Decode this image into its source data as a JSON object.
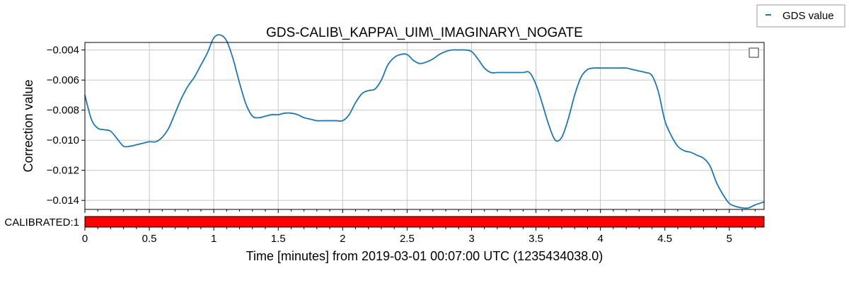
{
  "chart_data": {
    "type": "line",
    "title": "GDS-CALIB\\_KAPPA\\_UIM\\_IMAGINARY\\_NOGATE",
    "xlabel": "Time [minutes] from 2019-03-01 00:07:00 UTC (1235434038.0)",
    "ylabel": "Correction value",
    "xlim": [
      0,
      5.27
    ],
    "ylim": [
      -0.0146,
      -0.0035
    ],
    "x_ticks": [
      "0",
      "0.5",
      "1",
      "1.5",
      "2",
      "2.5",
      "3",
      "3.5",
      "4",
      "4.5",
      "5"
    ],
    "y_ticks": [
      "−0.004",
      "−0.006",
      "−0.008",
      "−0.010",
      "−0.012",
      "−0.014"
    ],
    "grid": true,
    "legend": {
      "placement": "top-right",
      "entries": [
        "GDS value"
      ]
    },
    "series": [
      {
        "name": "GDS value",
        "color": "#1f77b4",
        "x": [
          0,
          0.05,
          0.1,
          0.15,
          0.2,
          0.25,
          0.3,
          0.35,
          0.4,
          0.45,
          0.5,
          0.55,
          0.6,
          0.65,
          0.7,
          0.75,
          0.8,
          0.85,
          0.9,
          0.95,
          1.0,
          1.05,
          1.1,
          1.15,
          1.2,
          1.25,
          1.3,
          1.35,
          1.4,
          1.45,
          1.5,
          1.55,
          1.6,
          1.65,
          1.7,
          1.75,
          1.8,
          1.85,
          1.9,
          1.95,
          2.0,
          2.05,
          2.1,
          2.15,
          2.2,
          2.25,
          2.3,
          2.35,
          2.4,
          2.45,
          2.5,
          2.55,
          2.6,
          2.65,
          2.7,
          2.75,
          2.8,
          2.85,
          2.9,
          2.95,
          3.0,
          3.05,
          3.1,
          3.15,
          3.2,
          3.25,
          3.3,
          3.35,
          3.4,
          3.45,
          3.5,
          3.55,
          3.6,
          3.65,
          3.7,
          3.75,
          3.8,
          3.85,
          3.9,
          3.95,
          4.0,
          4.05,
          4.1,
          4.15,
          4.2,
          4.25,
          4.3,
          4.35,
          4.4,
          4.45,
          4.5,
          4.55,
          4.6,
          4.65,
          4.7,
          4.75,
          4.8,
          4.85,
          4.9,
          4.95,
          5.0,
          5.05,
          5.1,
          5.15,
          5.2,
          5.27
        ],
        "y": [
          -0.007,
          -0.0086,
          -0.0092,
          -0.0093,
          -0.0094,
          -0.0099,
          -0.0104,
          -0.0104,
          -0.0103,
          -0.0102,
          -0.0101,
          -0.0101,
          -0.0098,
          -0.0092,
          -0.0082,
          -0.0072,
          -0.0064,
          -0.0058,
          -0.005,
          -0.0042,
          -0.0032,
          -0.003,
          -0.0034,
          -0.0046,
          -0.0062,
          -0.0076,
          -0.0084,
          -0.0085,
          -0.0084,
          -0.0083,
          -0.0083,
          -0.0082,
          -0.0082,
          -0.0083,
          -0.0085,
          -0.0086,
          -0.0087,
          -0.0087,
          -0.0087,
          -0.0087,
          -0.0087,
          -0.0083,
          -0.0075,
          -0.0069,
          -0.0067,
          -0.0066,
          -0.006,
          -0.005,
          -0.0045,
          -0.0043,
          -0.0043,
          -0.0047,
          -0.0049,
          -0.0048,
          -0.0046,
          -0.0043,
          -0.0041,
          -0.004,
          -0.004,
          -0.004,
          -0.0041,
          -0.0046,
          -0.0052,
          -0.0055,
          -0.0055,
          -0.0055,
          -0.0055,
          -0.0055,
          -0.0055,
          -0.0055,
          -0.0063,
          -0.0076,
          -0.009,
          -0.01,
          -0.0098,
          -0.0086,
          -0.007,
          -0.0058,
          -0.0053,
          -0.0052,
          -0.0052,
          -0.0052,
          -0.0052,
          -0.0052,
          -0.0052,
          -0.0053,
          -0.0054,
          -0.0055,
          -0.0057,
          -0.0068,
          -0.0087,
          -0.0097,
          -0.0104,
          -0.0107,
          -0.0108,
          -0.011,
          -0.0112,
          -0.0117,
          -0.0128,
          -0.0136,
          -0.0142,
          -0.0144,
          -0.0145,
          -0.0145,
          -0.0143,
          -0.0141
        ]
      }
    ],
    "state_bar": {
      "label": "CALIBRATED:1",
      "color": "#ff0000",
      "segments": [
        [
          0,
          5.27
        ]
      ]
    }
  }
}
